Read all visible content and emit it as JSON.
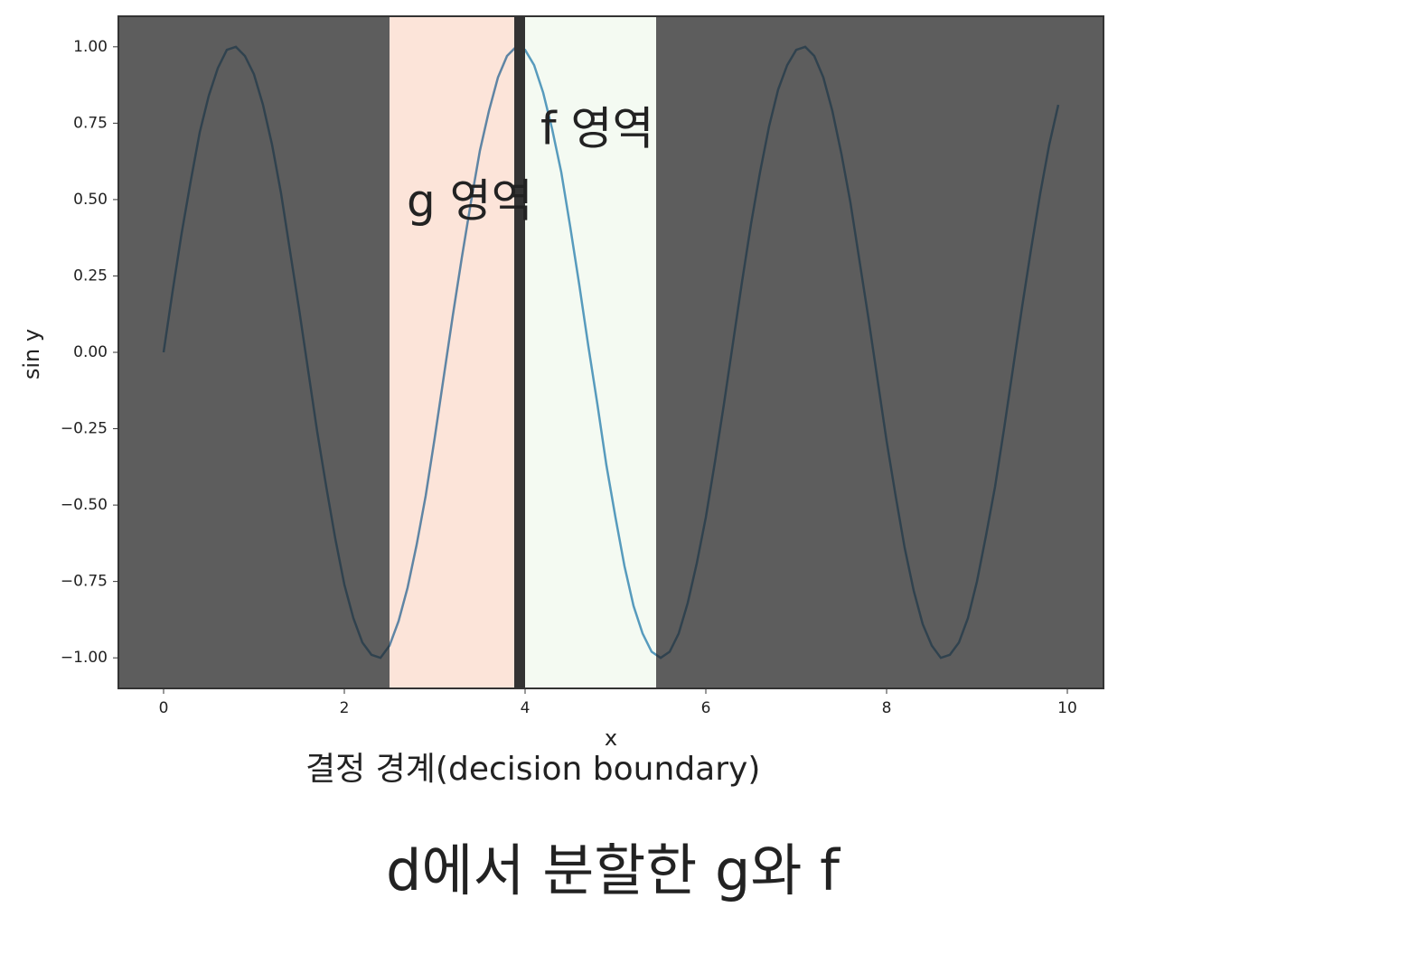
{
  "chart_data": {
    "type": "line",
    "title": "d에서 분할한 g와 f",
    "x_label": "x",
    "y_label": "sin y",
    "x": [
      0,
      0.1,
      0.2,
      0.3,
      0.4,
      0.5,
      0.6,
      0.7,
      0.8,
      0.9,
      1,
      1.1,
      1.2,
      1.3,
      1.4,
      1.5,
      1.6,
      1.7,
      1.8,
      1.9,
      2,
      2.1,
      2.2,
      2.3,
      2.4,
      2.5,
      2.6,
      2.7,
      2.8,
      2.9,
      3,
      3.1,
      3.2,
      3.3,
      3.4,
      3.5,
      3.6,
      3.7,
      3.8,
      3.9,
      4,
      4.1,
      4.2,
      4.3,
      4.4,
      4.5,
      4.6,
      4.7,
      4.8,
      4.9,
      5,
      5.1,
      5.2,
      5.3,
      5.4,
      5.5,
      5.6,
      5.7,
      5.8,
      5.9,
      6,
      6.1,
      6.2,
      6.3,
      6.4,
      6.5,
      6.6,
      6.7,
      6.8,
      6.9,
      7,
      7.1,
      7.2,
      7.3,
      7.4,
      7.5,
      7.6,
      7.7,
      7.8,
      7.9,
      8,
      8.1,
      8.2,
      8.3,
      8.4,
      8.5,
      8.6,
      8.7,
      8.8,
      8.9,
      9,
      9.1,
      9.2,
      9.3,
      9.4,
      9.5,
      9.6,
      9.7,
      9.8,
      9.9
    ],
    "values": [
      0,
      0.2,
      0.39,
      0.56,
      0.72,
      0.84,
      0.93,
      0.99,
      1.0,
      0.97,
      0.91,
      0.81,
      0.68,
      0.52,
      0.33,
      0.14,
      -0.06,
      -0.26,
      -0.44,
      -0.61,
      -0.76,
      -0.87,
      -0.95,
      -0.99,
      -1.0,
      -0.96,
      -0.88,
      -0.77,
      -0.63,
      -0.47,
      -0.28,
      -0.08,
      0.12,
      0.31,
      0.49,
      0.66,
      0.79,
      0.9,
      0.97,
      1.0,
      0.99,
      0.94,
      0.85,
      0.73,
      0.59,
      0.41,
      0.22,
      0.02,
      -0.17,
      -0.37,
      -0.54,
      -0.7,
      -0.83,
      -0.92,
      -0.98,
      -1.0,
      -0.98,
      -0.92,
      -0.82,
      -0.69,
      -0.54,
      -0.36,
      -0.17,
      0.03,
      0.23,
      0.42,
      0.59,
      0.74,
      0.86,
      0.94,
      0.99,
      1.0,
      0.97,
      0.9,
      0.79,
      0.65,
      0.49,
      0.3,
      0.11,
      -0.09,
      -0.29,
      -0.47,
      -0.64,
      -0.78,
      -0.89,
      -0.96,
      -1.0,
      -0.99,
      -0.95,
      -0.87,
      -0.75,
      -0.6,
      -0.44,
      -0.25,
      -0.05,
      0.15,
      0.34,
      0.52,
      0.68,
      0.81
    ],
    "color": "#1f77b4",
    "xlim": [
      -0.5,
      10.4
    ],
    "ylim": [
      -1.1,
      1.1
    ],
    "xticks": [
      0,
      2,
      4,
      6,
      8,
      10
    ],
    "yticks": [
      {
        "value": -1,
        "label": "−1.00"
      },
      {
        "value": -0.75,
        "label": "−0.75"
      },
      {
        "value": -0.5,
        "label": "−0.50"
      },
      {
        "value": -0.25,
        "label": "−0.25"
      },
      {
        "value": 0,
        "label": "0.00"
      },
      {
        "value": 0.25,
        "label": "0.25"
      },
      {
        "value": 0.5,
        "label": "0.50"
      },
      {
        "value": 0.75,
        "label": "0.75"
      },
      {
        "value": 1,
        "label": "1.00"
      }
    ],
    "regions": [
      {
        "name": "g 영역",
        "span": [
          2.5,
          3.88
        ],
        "color": "#f4a582",
        "opacity": 0.3
      },
      {
        "name": "결정 경계(decision boundary)",
        "span": [
          3.88,
          4.0
        ],
        "color": "#333333",
        "opacity": 1
      },
      {
        "name": "f 영역",
        "span": [
          4.0,
          5.45
        ],
        "color": "#d9f0d3",
        "opacity": 0.3
      }
    ],
    "outside_color": "#343434",
    "outside_opacity": 0.8
  }
}
